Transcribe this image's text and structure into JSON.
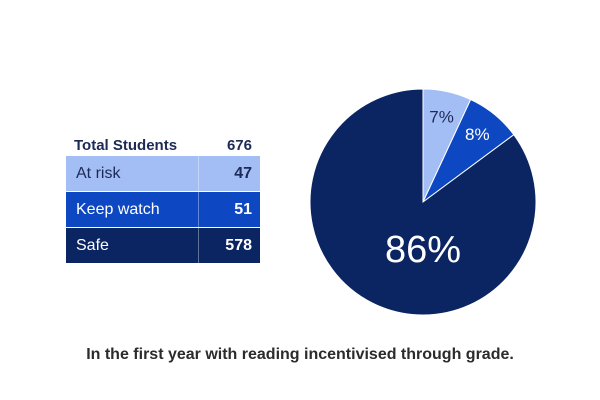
{
  "table": {
    "total_label": "Total Students",
    "total_value": "676",
    "rows": [
      {
        "label": "At risk",
        "value": "47",
        "bg": "#a3bdf5",
        "fg": "#1d2a57"
      },
      {
        "label": "Keep watch",
        "value": "51",
        "bg": "#0d47c2",
        "fg": "#ffffff"
      },
      {
        "label": "Safe",
        "value": "578",
        "bg": "#0b2563",
        "fg": "#ffffff"
      }
    ]
  },
  "caption": "In the first year with reading incentivised through grade.",
  "chart_data": {
    "type": "pie",
    "title": "",
    "slices": [
      {
        "label": "At risk",
        "value": 7,
        "display": "7%",
        "color": "#a3bdf5",
        "text_color": "#1d2a57"
      },
      {
        "label": "Keep watch",
        "value": 8,
        "display": "8%",
        "color": "#0d47c2",
        "text_color": "#ffffff"
      },
      {
        "label": "Safe",
        "value": 86,
        "display": "86%",
        "color": "#0b2563",
        "text_color": "#ffffff"
      }
    ]
  }
}
